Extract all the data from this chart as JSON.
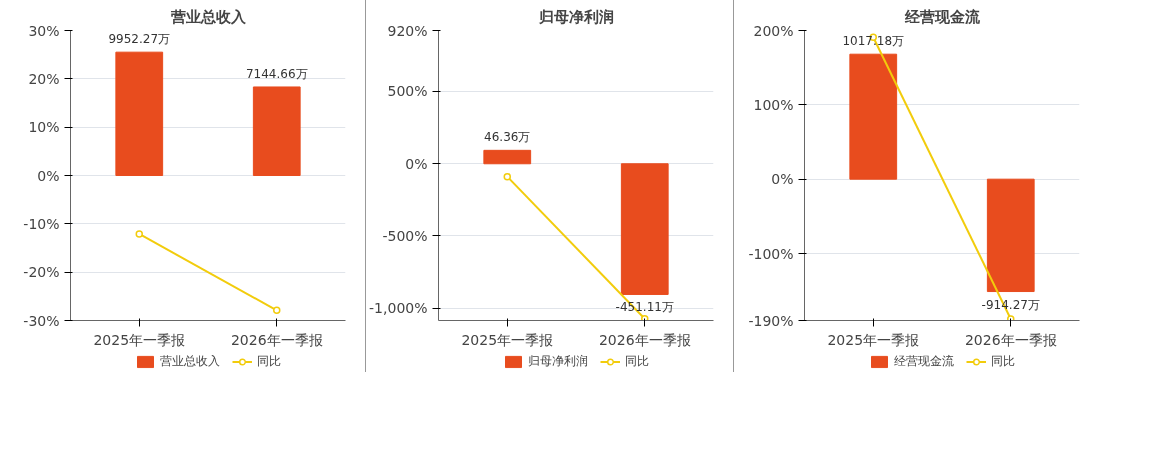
{
  "chart_data": [
    {
      "type": "bar",
      "title": "营业总收入",
      "categories": [
        "2025年一季报",
        "2026年一季报"
      ],
      "series": [
        {
          "name": "营业总收入",
          "axis": "y2",
          "color": "#e84c1e",
          "values": [
            9952.27,
            7144.66
          ],
          "value_labels": [
            "9952.27万",
            "7144.66万"
          ]
        },
        {
          "name": "同比",
          "type": "line",
          "color": "#f2cc0c",
          "values": [
            -12.1,
            -27.9
          ]
        }
      ],
      "ylim": [
        -30,
        30
      ],
      "yticks": [
        {
          "value": -30,
          "label": "-30%"
        },
        {
          "value": -20,
          "label": "-20%"
        },
        {
          "value": -10,
          "label": "-10%"
        },
        {
          "value": 0,
          "label": "0%"
        },
        {
          "value": 10,
          "label": "10%"
        },
        {
          "value": 20,
          "label": "20%"
        },
        {
          "value": 30,
          "label": "30%"
        }
      ],
      "y2lim": [
        -11700,
        11700
      ],
      "tick_labels": "xy",
      "grid": "y",
      "legend": "bottom",
      "marker": "circle"
    },
    {
      "type": "bar",
      "title": "归母净利润",
      "categories": [
        "2025年一季报",
        "2026年一季报"
      ],
      "series": [
        {
          "name": "归母净利润",
          "axis": "y2",
          "color": "#e84c1e",
          "values": [
            46.36,
            -451.11
          ],
          "value_labels": [
            "46.36万",
            "-451.11万"
          ]
        },
        {
          "name": "同比",
          "type": "line",
          "color": "#f2cc0c",
          "values": [
            -90,
            -1072
          ]
        }
      ],
      "ylim": [
        -1084,
        920
      ],
      "yticks": [
        {
          "value": -1000,
          "label": "-1,000%"
        },
        {
          "value": -500,
          "label": "-500%"
        },
        {
          "value": 0,
          "label": "0%"
        },
        {
          "value": 500,
          "label": "500%"
        },
        {
          "value": 920,
          "label": "920%"
        }
      ],
      "y2lim": [
        -541,
        460
      ],
      "tick_labels": "xy",
      "grid": "y",
      "legend": "bottom",
      "marker": "circle"
    },
    {
      "type": "bar",
      "title": "经营现金流",
      "categories": [
        "2025年一季报",
        "2026年一季报"
      ],
      "series": [
        {
          "name": "经营现金流",
          "axis": "y2",
          "color": "#e84c1e",
          "values": [
            1017.18,
            -914.27
          ],
          "value_labels": [
            "1017.18万",
            "-914.27万"
          ]
        },
        {
          "name": "同比",
          "type": "line",
          "color": "#f2cc0c",
          "values": [
            191,
            -188
          ]
        }
      ],
      "ylim": [
        -190,
        200
      ],
      "yticks": [
        {
          "value": -190,
          "label": "-190%"
        },
        {
          "value": -100,
          "label": "-100%"
        },
        {
          "value": 0,
          "label": "0%"
        },
        {
          "value": 100,
          "label": "100%"
        },
        {
          "value": 200,
          "label": "200%"
        }
      ],
      "y2lim": [
        -1150,
        1210
      ],
      "tick_labels": "xy",
      "grid": "y",
      "legend": "bottom",
      "marker": "circle"
    }
  ]
}
